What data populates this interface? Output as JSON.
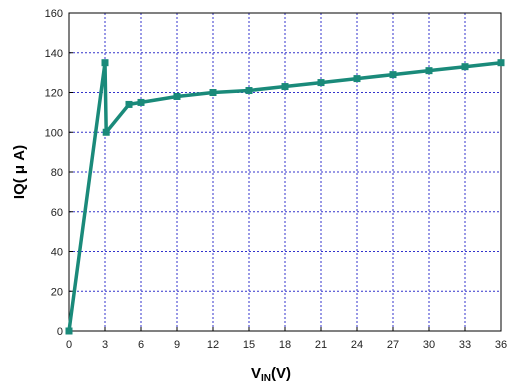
{
  "chart_data": {
    "type": "line",
    "xlabel": {
      "main": "V",
      "subscript": "IN",
      "suffix": "(V)"
    },
    "ylabel": "IQ( μ A)",
    "xlim": [
      0,
      36
    ],
    "ylim": [
      0,
      160
    ],
    "xticks": [
      "0",
      "3",
      "6",
      "9",
      "12",
      "15",
      "18",
      "21",
      "24",
      "27",
      "30",
      "33",
      "36"
    ],
    "yticks": [
      "0",
      "20",
      "40",
      "60",
      "80",
      "100",
      "120",
      "140",
      "160"
    ],
    "grid": true,
    "series": [
      {
        "x": [
          0,
          3,
          3.1,
          5,
          6,
          9,
          12,
          15,
          18,
          21,
          24,
          27,
          30,
          33,
          36
        ],
        "y": [
          0,
          135,
          100,
          114,
          115,
          118,
          120,
          121,
          123,
          125,
          127,
          129,
          131,
          133,
          135
        ]
      }
    ],
    "colors": {
      "line": "#1a8a7a",
      "grid": "#3333cc",
      "frame": "#000000"
    }
  }
}
